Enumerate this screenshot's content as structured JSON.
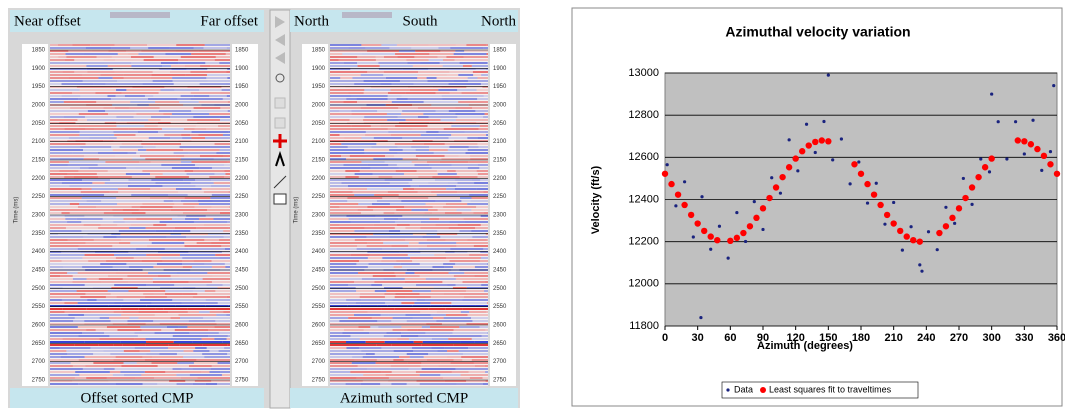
{
  "offset_panel": {
    "left_label": "Near offset",
    "right_label": "Far offset",
    "caption": "Offset sorted CMP",
    "axis_label": "Time (ms)",
    "time_ticks": [
      1850,
      1900,
      1950,
      2000,
      2050,
      2100,
      2150,
      2200,
      2250,
      2300,
      2350,
      2400,
      2450,
      2500,
      2550,
      2600,
      2650,
      2700,
      2750
    ]
  },
  "azimuth_panel": {
    "left_label": "North",
    "middle_label": "South",
    "right_label": "North",
    "caption": "Azimuth sorted CMP",
    "axis_label": "Time (ms)",
    "time_ticks": [
      1850,
      1900,
      1950,
      2000,
      2050,
      2100,
      2150,
      2200,
      2250,
      2300,
      2350,
      2400,
      2450,
      2500,
      2550,
      2600,
      2650,
      2700,
      2750
    ]
  },
  "chart_data": {
    "type": "scatter",
    "title": "Azimuthal velocity variation",
    "x_label": "Azimuth (degrees)",
    "y_label": "Velocity (ft/s)",
    "xlim": [
      0,
      360
    ],
    "xticks": [
      0,
      30,
      60,
      90,
      120,
      150,
      180,
      210,
      240,
      270,
      300,
      330,
      360
    ],
    "ylim": [
      11800,
      13000
    ],
    "yticks": [
      11800,
      12000,
      12200,
      12400,
      12600,
      12800,
      13000
    ],
    "grid": true,
    "legend": "bottom",
    "series": [
      {
        "name": "Data",
        "color": "#1a237e",
        "x": [
          2,
          10,
          18,
          26,
          33,
          34,
          42,
          50,
          58,
          66,
          74,
          82,
          90,
          98,
          106,
          114,
          122,
          130,
          138,
          146,
          150,
          154,
          162,
          170,
          178,
          186,
          194,
          202,
          210,
          218,
          226,
          234,
          236,
          242,
          250,
          258,
          266,
          274,
          282,
          290,
          298,
          300,
          306,
          314,
          322,
          330,
          338,
          346,
          354,
          357
        ],
        "values": [
          12565,
          12370,
          12484,
          12222,
          11840,
          12413,
          12164,
          12273,
          12122,
          12338,
          12201,
          12390,
          12258,
          12503,
          12430,
          12683,
          12536,
          12757,
          12623,
          12770,
          12990,
          12588,
          12687,
          12474,
          12578,
          12383,
          12477,
          12283,
          12386,
          12160,
          12271,
          12090,
          12060,
          12247,
          12162,
          12363,
          12287,
          12500,
          12377,
          12592,
          12531,
          12900,
          12769,
          12592,
          12769,
          12616,
          12776,
          12538,
          12627,
          12940
        ]
      },
      {
        "name": "Least squares fit to traveltimes",
        "color": "#ff0000",
        "x": [
          0,
          6,
          12,
          18,
          24,
          30,
          36,
          42,
          48,
          60,
          66,
          72,
          78,
          84,
          90,
          96,
          102,
          108,
          114,
          120,
          126,
          132,
          138,
          144,
          150,
          174,
          180,
          186,
          192,
          198,
          204,
          210,
          216,
          222,
          228,
          234,
          252,
          258,
          264,
          270,
          276,
          282,
          288,
          294,
          300,
          324,
          330,
          336,
          342,
          348,
          354,
          360
        ],
        "values": [
          12522,
          12473,
          12423,
          12374,
          12327,
          12286,
          12251,
          12224,
          12207,
          12204,
          12218,
          12241,
          12273,
          12313,
          12358,
          12407,
          12457,
          12506,
          12553,
          12594,
          12629,
          12656,
          12673,
          12680,
          12676,
          12567,
          12522,
          12473,
          12423,
          12374,
          12327,
          12286,
          12251,
          12224,
          12207,
          12200,
          12241,
          12273,
          12313,
          12358,
          12407,
          12457,
          12506,
          12553,
          12594,
          12680,
          12676,
          12662,
          12639,
          12607,
          12567,
          12522
        ]
      }
    ]
  }
}
